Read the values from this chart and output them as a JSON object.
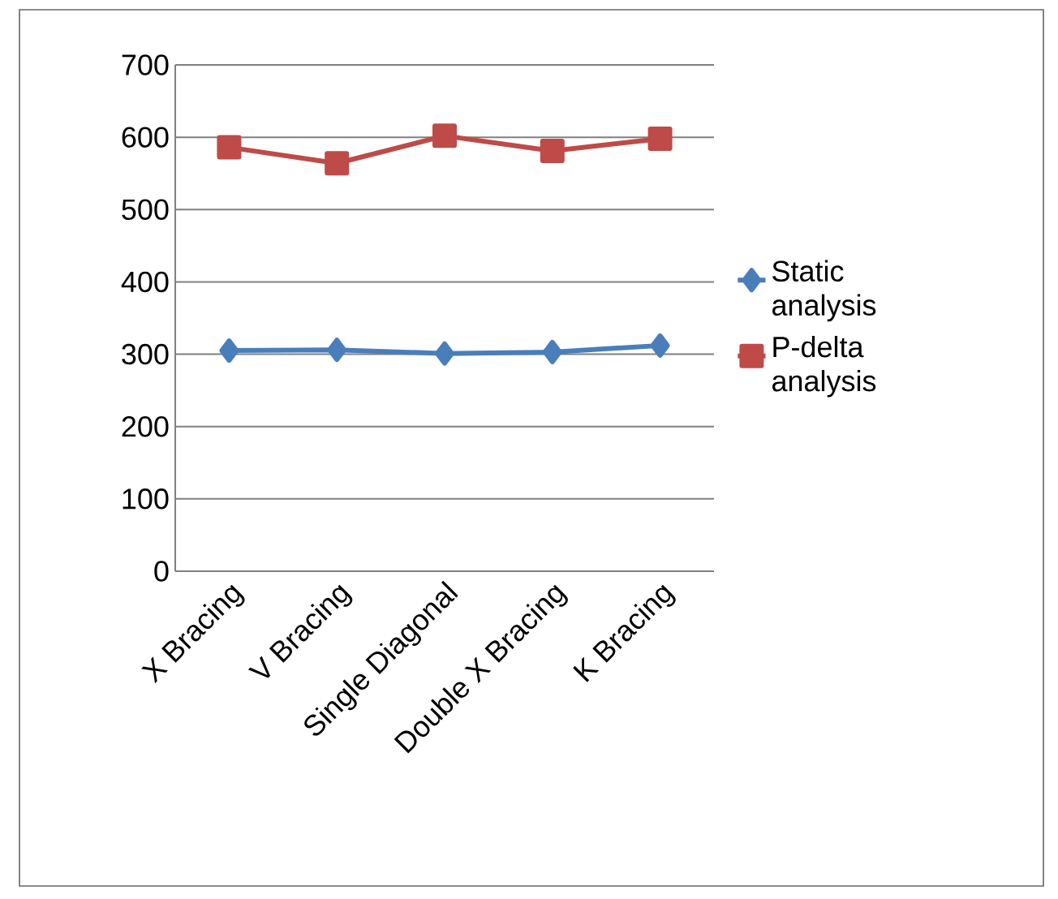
{
  "chart_data": {
    "type": "line",
    "categories": [
      "X Bracing",
      "V Bracing",
      "Single Diagonal",
      "Double X Bracing",
      "K Bracing"
    ],
    "series": [
      {
        "name": "Static analysis",
        "color": "#4a7ebb",
        "marker": "diamond",
        "values": [
          305,
          306,
          301,
          303,
          312
        ]
      },
      {
        "name": "P-delta analysis",
        "color": "#be4b48",
        "marker": "square",
        "values": [
          586,
          564,
          602,
          581,
          598
        ]
      }
    ],
    "ylim": [
      0,
      700
    ],
    "yticks": [
      0,
      100,
      200,
      300,
      400,
      500,
      600,
      700
    ],
    "grid": "y",
    "legend": "right",
    "line_style": "solid"
  }
}
